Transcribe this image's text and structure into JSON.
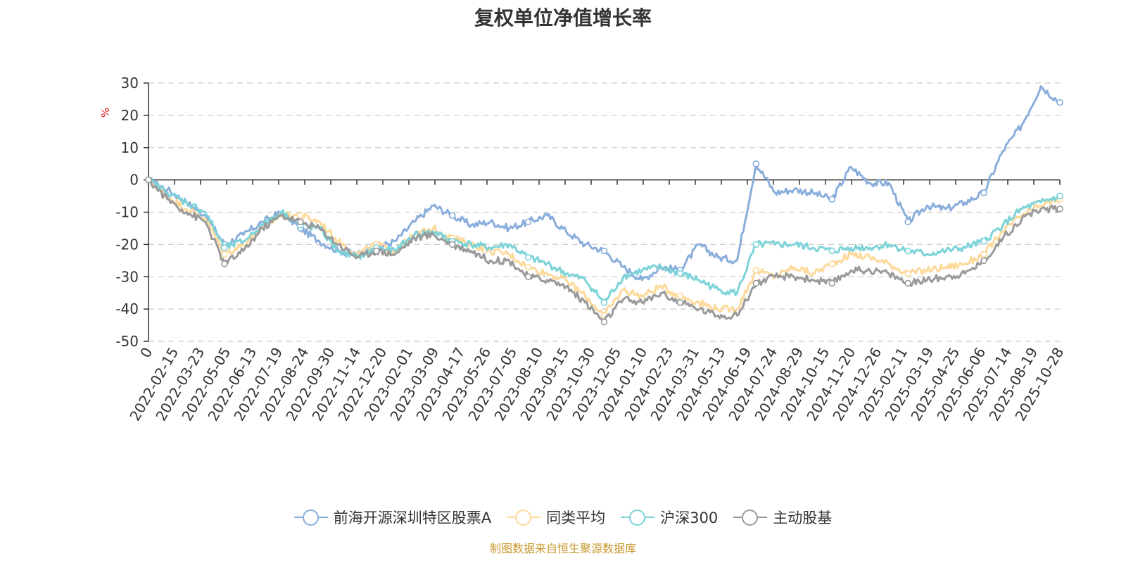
{
  "chart_data": {
    "type": "line",
    "title": "复权单位净值增长率",
    "ylabel": "%",
    "xlabel": "",
    "ylim": [
      -50,
      30
    ],
    "yticks": [
      30,
      20,
      10,
      0,
      -10,
      -20,
      -30,
      -40,
      -50
    ],
    "x_tick_labels": [
      "0",
      "2022-02-15",
      "2022-03-23",
      "2022-05-05",
      "2022-06-13",
      "2022-07-19",
      "2022-08-24",
      "2022-09-30",
      "2022-11-14",
      "2022-12-20",
      "2023-02-01",
      "2023-03-09",
      "2023-04-17",
      "2023-05-26",
      "2023-07-05",
      "2023-08-10",
      "2023-09-15",
      "2023-10-30",
      "2023-12-05",
      "2024-01-10",
      "2024-02-23",
      "2024-03-31",
      "2024-05-13",
      "2024-06-19",
      "2024-07-24",
      "2024-08-29",
      "2024-10-15",
      "2024-11-20",
      "2024-12-26",
      "2025-02-11",
      "2025-03-19",
      "2025-04-25",
      "2025-06-06",
      "2025-07-14",
      "2025-08-19",
      "2025-10-28"
    ],
    "grid": true,
    "legend_position": "bottom-center",
    "series": [
      {
        "name": "前海开源深圳特区股票A",
        "color": "#8aaedc",
        "values": [
          0,
          -3,
          -7,
          -11,
          -20,
          -17,
          -13,
          -10,
          -15,
          -19,
          -22,
          -23,
          -21,
          -19,
          -13,
          -8,
          -11,
          -14,
          -13,
          -15,
          -13,
          -11,
          -16,
          -20,
          -22,
          -27,
          -31,
          -27,
          -28,
          -20,
          -24,
          -25,
          5,
          -4,
          -3,
          -4,
          -6,
          4,
          -1,
          -1,
          -13,
          -8,
          -9,
          -7,
          -4,
          9,
          17,
          29,
          24
        ]
      },
      {
        "name": "同类平均",
        "color": "#fdd99a",
        "values": [
          0,
          -5,
          -9,
          -12,
          -23,
          -20,
          -15,
          -11,
          -11,
          -13,
          -19,
          -23,
          -20,
          -22,
          -17,
          -15,
          -18,
          -20,
          -22,
          -23,
          -27,
          -29,
          -31,
          -36,
          -42,
          -34,
          -36,
          -33,
          -36,
          -38,
          -40,
          -40,
          -28,
          -30,
          -27,
          -29,
          -26,
          -23,
          -24,
          -26,
          -29,
          -28,
          -27,
          -26,
          -23,
          -16,
          -11,
          -8,
          -6
        ]
      },
      {
        "name": "沪深300",
        "color": "#7dd3d8",
        "values": [
          0,
          -4,
          -7,
          -10,
          -21,
          -19,
          -14,
          -10,
          -14,
          -15,
          -22,
          -24,
          -21,
          -22,
          -17,
          -16,
          -19,
          -20,
          -21,
          -20,
          -24,
          -26,
          -29,
          -31,
          -38,
          -30,
          -28,
          -27,
          -29,
          -31,
          -34,
          -35,
          -20,
          -20,
          -20,
          -21,
          -22,
          -21,
          -21,
          -20,
          -22,
          -23,
          -22,
          -21,
          -19,
          -14,
          -9,
          -7,
          -5
        ]
      },
      {
        "name": "主动股基",
        "color": "#9a9a9a",
        "values": [
          0,
          -6,
          -10,
          -13,
          -26,
          -22,
          -15,
          -11,
          -13,
          -15,
          -20,
          -24,
          -22,
          -23,
          -18,
          -17,
          -20,
          -22,
          -25,
          -25,
          -30,
          -31,
          -33,
          -38,
          -44,
          -37,
          -38,
          -35,
          -38,
          -40,
          -42,
          -42,
          -32,
          -30,
          -30,
          -31,
          -32,
          -28,
          -28,
          -29,
          -32,
          -31,
          -30,
          -29,
          -25,
          -18,
          -12,
          -9,
          -9
        ]
      }
    ]
  },
  "legend": {
    "items": [
      "前海开源深圳特区股票A",
      "同类平均",
      "沪深300",
      "主动股基"
    ]
  },
  "footer": {
    "source": "制图数据来自恒生聚源数据库"
  }
}
